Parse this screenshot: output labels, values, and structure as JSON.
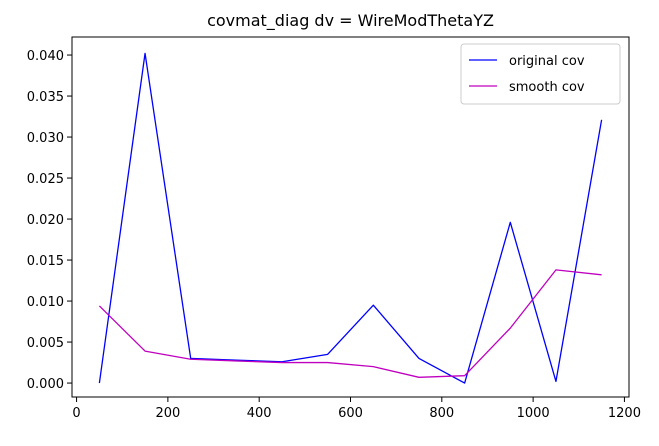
{
  "chart_data": {
    "type": "line",
    "title": "covmat_diag dv = WireModThetaYZ",
    "xlabel": "",
    "ylabel": "",
    "x": [
      50,
      150,
      250,
      350,
      450,
      550,
      650,
      750,
      850,
      950,
      1050,
      1150
    ],
    "series": [
      {
        "name": "original cov",
        "color": "#0000ff",
        "values": [
          0.0,
          0.0402,
          0.003,
          0.0028,
          0.0026,
          0.0035,
          0.0095,
          0.003,
          0.0,
          0.0196,
          0.0002,
          0.0321
        ]
      },
      {
        "name": "smooth cov",
        "color": "#bf00bf",
        "values": [
          0.0094,
          0.0039,
          0.0029,
          0.0027,
          0.0025,
          0.0025,
          0.002,
          0.0007,
          0.0009,
          0.0067,
          0.0138,
          0.0132
        ]
      }
    ],
    "xlim": [
      -10,
      1210
    ],
    "ylim": [
      -0.0017,
      0.0422
    ],
    "xticks": [
      0,
      200,
      400,
      600,
      800,
      1000,
      1200
    ],
    "xtick_labels": [
      "0",
      "200",
      "400",
      "600",
      "800",
      "1000",
      "1200"
    ],
    "yticks": [
      0.0,
      0.005,
      0.01,
      0.015,
      0.02,
      0.025,
      0.03,
      0.035,
      0.04
    ],
    "ytick_labels": [
      "0.000",
      "0.005",
      "0.010",
      "0.015",
      "0.020",
      "0.025",
      "0.030",
      "0.035",
      "0.040"
    ],
    "grid": false,
    "legend_position": "top-right"
  }
}
